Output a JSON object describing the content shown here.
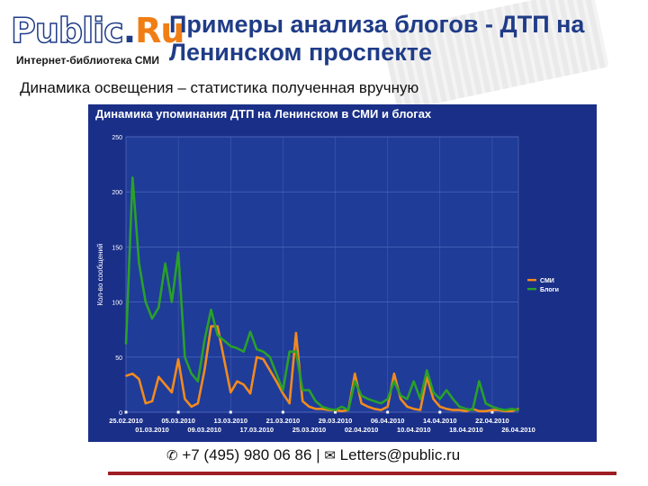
{
  "logo": {
    "public": "Public",
    "dot": ".",
    "ru": "Ru",
    "tagline": "Интернет-библиотека СМИ"
  },
  "slide": {
    "title": "Примеры анализа блогов - ДТП на Ленинском проспекте",
    "subtitle": "Динамика освещения – статистика полученная вручную"
  },
  "footer": {
    "phone_icon": "phone-icon",
    "phone": "+7 (495) 980 06 86",
    "separator": "|",
    "mail_icon": "envelope-icon",
    "email": "Letters@public.ru"
  },
  "colors": {
    "panel": "#1a2f88",
    "plot": "#1f3c99",
    "smi": "#f28a1e",
    "blogs": "#2aa02a",
    "accent_line": "#9f1d24"
  },
  "chart_data": {
    "type": "line",
    "title": "Динамика упоминания ДТП на Ленинском в СМИ и блогах",
    "ylabel": "Кол-во сообщений",
    "xlabel": "",
    "ylim": [
      0,
      250
    ],
    "yticks": [
      0,
      50,
      100,
      150,
      200,
      250
    ],
    "grid": true,
    "legend_position": "right",
    "x": [
      "25.02.2010",
      "26.02.2010",
      "27.02.2010",
      "28.02.2010",
      "01.03.2010",
      "02.03.2010",
      "03.03.2010",
      "04.03.2010",
      "05.03.2010",
      "06.03.2010",
      "07.03.2010",
      "08.03.2010",
      "09.03.2010",
      "10.03.2010",
      "11.03.2010",
      "12.03.2010",
      "13.03.2010",
      "14.03.2010",
      "15.03.2010",
      "16.03.2010",
      "17.03.2010",
      "18.03.2010",
      "19.03.2010",
      "20.03.2010",
      "21.03.2010",
      "22.03.2010",
      "23.03.2010",
      "24.03.2010",
      "25.03.2010",
      "26.03.2010",
      "27.03.2010",
      "28.03.2010",
      "29.03.2010",
      "30.03.2010",
      "31.03.2010",
      "01.04.2010",
      "02.04.2010",
      "03.04.2010",
      "04.04.2010",
      "05.04.2010",
      "06.04.2010",
      "07.04.2010",
      "08.04.2010",
      "09.04.2010",
      "10.04.2010",
      "11.04.2010",
      "12.04.2010",
      "13.04.2010",
      "14.04.2010",
      "15.04.2010",
      "16.04.2010",
      "17.04.2010",
      "18.04.2010",
      "19.04.2010",
      "20.04.2010",
      "21.04.2010",
      "22.04.2010",
      "23.04.2010",
      "24.04.2010",
      "25.04.2010",
      "26.04.2010"
    ],
    "xtick_labels_row1": [
      "25.02.2010",
      "05.03.2010",
      "13.03.2010",
      "21.03.2010",
      "29.03.2010",
      "06.04.2010",
      "14.04.2010",
      "22.04.2010"
    ],
    "xtick_labels_row2": [
      "01.03.2010",
      "09.03.2010",
      "17.03.2010",
      "25.03.2010",
      "02.04.2010",
      "10.04.2010",
      "18.04.2010",
      "26.04.2010"
    ],
    "series": [
      {
        "name": "СМИ",
        "values": [
          33,
          35,
          30,
          8,
          10,
          32,
          25,
          18,
          48,
          12,
          5,
          8,
          38,
          78,
          78,
          48,
          18,
          28,
          25,
          17,
          50,
          48,
          38,
          28,
          17,
          8,
          72,
          10,
          5,
          3,
          3,
          2,
          2,
          1,
          2,
          35,
          8,
          5,
          3,
          2,
          5,
          35,
          12,
          5,
          3,
          2,
          32,
          12,
          5,
          3,
          2,
          2,
          1,
          3,
          1,
          1,
          2,
          2,
          1,
          1,
          3
        ]
      },
      {
        "name": "Блоги",
        "values": [
          62,
          213,
          135,
          100,
          85,
          95,
          135,
          100,
          145,
          50,
          35,
          28,
          65,
          93,
          70,
          65,
          60,
          58,
          55,
          73,
          57,
          55,
          50,
          35,
          20,
          55,
          55,
          20,
          20,
          10,
          5,
          3,
          2,
          5,
          2,
          28,
          15,
          12,
          10,
          8,
          12,
          28,
          15,
          12,
          28,
          12,
          38,
          18,
          12,
          20,
          12,
          5,
          3,
          2,
          28,
          8,
          5,
          3,
          2,
          3,
          2
        ]
      }
    ]
  }
}
